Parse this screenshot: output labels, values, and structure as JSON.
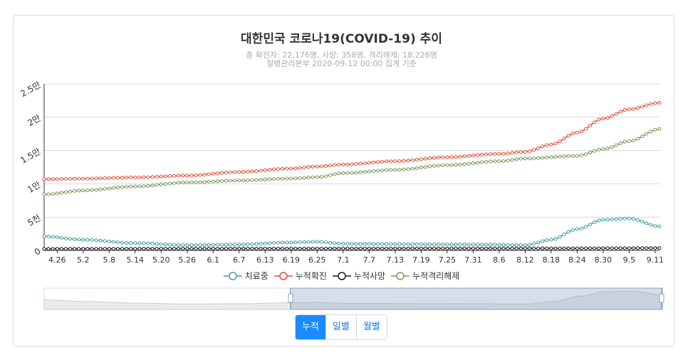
{
  "header": {
    "title": "대한민국 코로나19(COVID-19) 추이",
    "subtitle_line1": "총 확진자: 22,176명, 사망: 358명, 격리해제: 18,226명",
    "subtitle_line2": "질병관리본부 2020-09-12 00:00 집계 기준"
  },
  "buttons": [
    {
      "label": "누적",
      "active": true
    },
    {
      "label": "일별",
      "active": false
    },
    {
      "label": "월별",
      "active": false
    }
  ],
  "chart_data": {
    "type": "line",
    "ylim": [
      0,
      25000
    ],
    "y_ticks": [
      {
        "value": 0,
        "label": "0"
      },
      {
        "value": 5000,
        "label": "5천"
      },
      {
        "value": 10000,
        "label": "1만"
      },
      {
        "value": 15000,
        "label": "1.5만"
      },
      {
        "value": 20000,
        "label": "2만"
      },
      {
        "value": 25000,
        "label": "2.5만"
      }
    ],
    "x_tick_labels": [
      "4.26",
      "5.2",
      "5.8",
      "5.14",
      "5.20",
      "5.26",
      "6.1",
      "6.7",
      "6.13",
      "6.19",
      "6.25",
      "7.1",
      "7.7",
      "7.13",
      "7.19",
      "7.25",
      "7.31",
      "8.6",
      "8.12",
      "8.18",
      "8.24",
      "8.30",
      "9.5",
      "9.11"
    ],
    "x_start": "4.23",
    "x_end": "9.12",
    "grid": true,
    "legend_position": "bottom",
    "series": [
      {
        "name": "치료중",
        "color": "#4a9ea0",
        "points": [
          [
            "4.23",
            2100
          ],
          [
            "5.2",
            1600
          ],
          [
            "5.14",
            1100
          ],
          [
            "5.26",
            800
          ],
          [
            "6.7",
            900
          ],
          [
            "6.19",
            1200
          ],
          [
            "6.25",
            1300
          ],
          [
            "7.1",
            1000
          ],
          [
            "7.31",
            900
          ],
          [
            "8.12",
            800
          ],
          [
            "8.18",
            1600
          ],
          [
            "8.24",
            3200
          ],
          [
            "8.30",
            4600
          ],
          [
            "9.5",
            4800
          ],
          [
            "9.12",
            3600
          ]
        ]
      },
      {
        "name": "누적확진",
        "color": "#e0533a",
        "points": [
          [
            "4.23",
            10700
          ],
          [
            "5.2",
            10780
          ],
          [
            "5.14",
            10960
          ],
          [
            "5.26",
            11240
          ],
          [
            "6.7",
            11780
          ],
          [
            "6.19",
            12300
          ],
          [
            "6.25",
            12600
          ],
          [
            "7.1",
            12900
          ],
          [
            "7.13",
            13400
          ],
          [
            "7.25",
            14000
          ],
          [
            "8.6",
            14500
          ],
          [
            "8.12",
            14800
          ],
          [
            "8.18",
            15900
          ],
          [
            "8.24",
            17700
          ],
          [
            "8.30",
            19800
          ],
          [
            "9.5",
            21200
          ],
          [
            "9.12",
            22176
          ]
        ]
      },
      {
        "name": "누적사망",
        "color": "#1a1a1a",
        "points": [
          [
            "4.23",
            240
          ],
          [
            "5.26",
            270
          ],
          [
            "6.25",
            282
          ],
          [
            "7.25",
            298
          ],
          [
            "8.18",
            306
          ],
          [
            "9.5",
            334
          ],
          [
            "9.12",
            358
          ]
        ]
      },
      {
        "name": "누적격리해제",
        "color": "#7a9a5a",
        "points": [
          [
            "4.23",
            8400
          ],
          [
            "5.2",
            9000
          ],
          [
            "5.14",
            9600
          ],
          [
            "5.26",
            10200
          ],
          [
            "6.7",
            10500
          ],
          [
            "6.19",
            10800
          ],
          [
            "6.25",
            11000
          ],
          [
            "7.1",
            11600
          ],
          [
            "7.13",
            12100
          ],
          [
            "7.25",
            12800
          ],
          [
            "8.6",
            13400
          ],
          [
            "8.12",
            13800
          ],
          [
            "8.24",
            14200
          ],
          [
            "8.30",
            15200
          ],
          [
            "9.5",
            16400
          ],
          [
            "9.12",
            18226
          ]
        ]
      }
    ]
  }
}
